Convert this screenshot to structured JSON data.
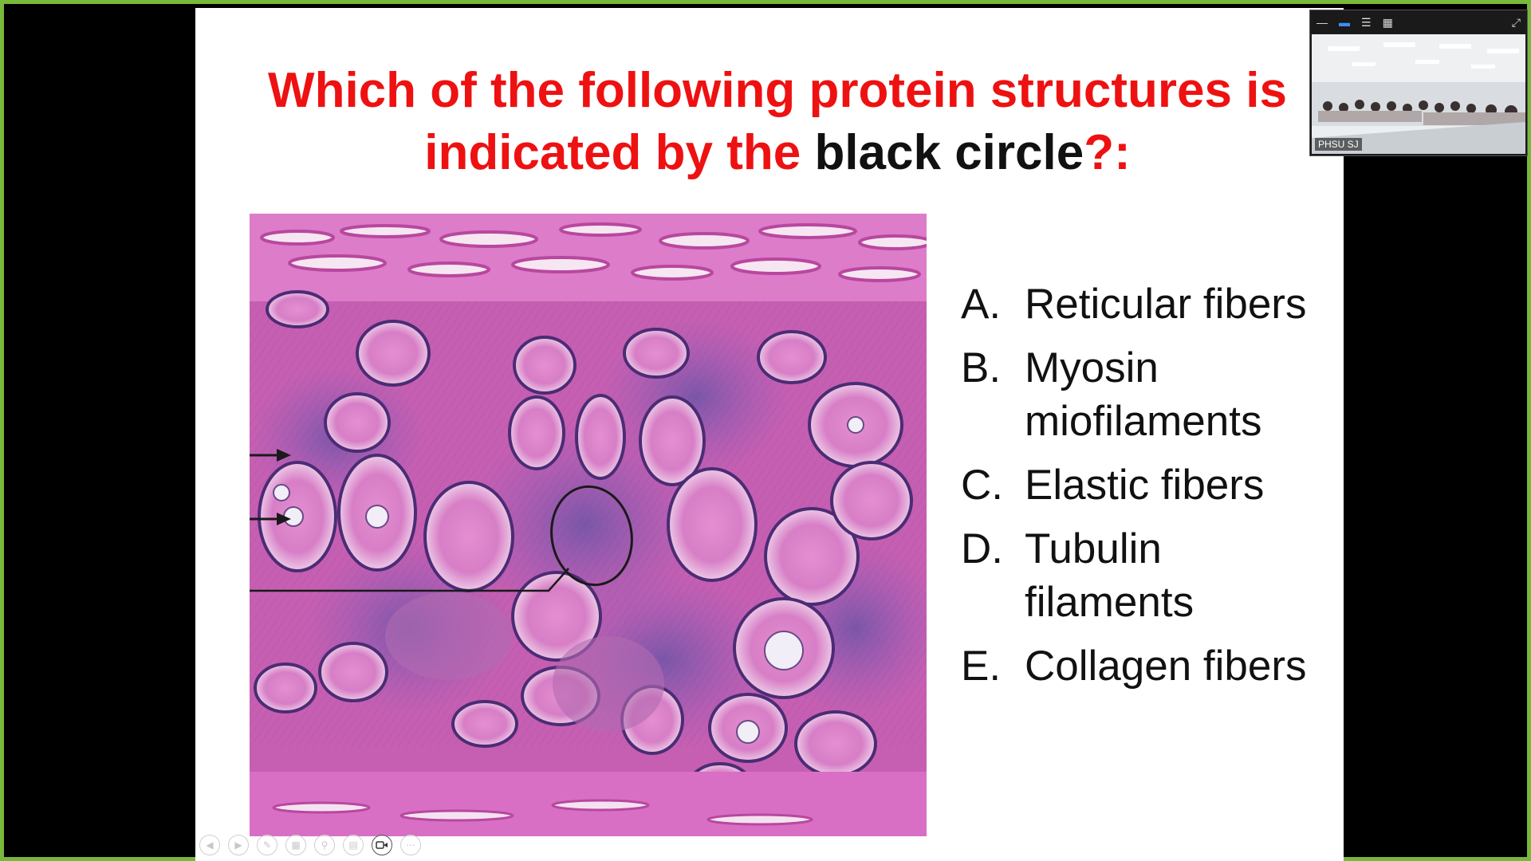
{
  "slide": {
    "title_line1": "Which of the following protein structures  is",
    "title_line2_red": "indicated by the ",
    "title_line2_black": "black circle",
    "title_line2_tail": "?:",
    "choices": [
      {
        "letter": "A.",
        "text": "Reticular fibers"
      },
      {
        "letter": "B.",
        "text": "Myosin miofilaments"
      },
      {
        "letter": "C.",
        "text": "Elastic fibers"
      },
      {
        "letter": "D.",
        "text": "Tubulin filaments"
      },
      {
        "letter": "E.",
        "text": "Collagen fibers"
      }
    ]
  },
  "video": {
    "participant_label": "PHSU SJ"
  },
  "toolbar": {
    "buttons": [
      "prev-icon",
      "next-icon",
      "pen-icon",
      "slides-icon",
      "zoom-icon",
      "subtitles-icon",
      "camera-icon",
      "more-icon"
    ]
  },
  "colors": {
    "frame_border": "#78b83a",
    "title_red": "#ee1111",
    "tissue_matrix": "#c95fb6",
    "tissue_dark": "#6a3f8f"
  }
}
